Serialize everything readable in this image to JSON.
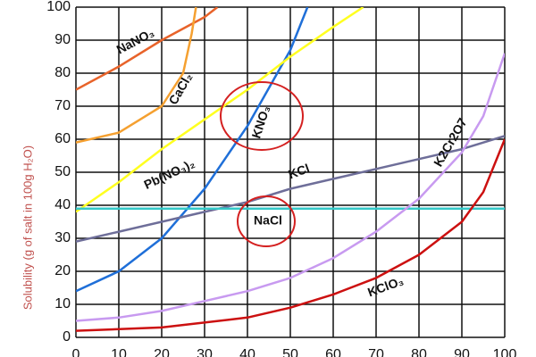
{
  "chart_data": {
    "type": "line",
    "ylabel": "Solubility (g of salt in 100g H₂O)",
    "xlim": [
      0,
      100
    ],
    "ylim": [
      0,
      100
    ],
    "xticks": [
      0,
      10,
      20,
      30,
      40,
      50,
      60,
      70,
      80,
      90,
      100
    ],
    "yticks": [
      0,
      10,
      20,
      30,
      40,
      50,
      60,
      70,
      80,
      90,
      100
    ],
    "grid": true,
    "series": [
      {
        "name": "NaNO₃",
        "color": "#e8632a",
        "x": [
          0,
          10,
          20,
          30,
          33
        ],
        "values": [
          75,
          82,
          90,
          97,
          100
        ]
      },
      {
        "name": "CaCl₂",
        "color": "#f5a030",
        "x": [
          0,
          10,
          20,
          25,
          27,
          28
        ],
        "values": [
          59,
          62,
          70,
          80,
          92,
          100
        ]
      },
      {
        "name": "KNO₃",
        "color": "#1f6fd8",
        "x": [
          0,
          10,
          20,
          30,
          40,
          50,
          54
        ],
        "values": [
          14,
          20,
          30,
          45,
          64,
          87,
          100
        ]
      },
      {
        "name": "Pb(NO₃)₂",
        "color": "#ffff20",
        "x": [
          0,
          10,
          20,
          30,
          40,
          50,
          60,
          67
        ],
        "values": [
          38,
          47,
          57,
          66,
          75,
          85,
          94,
          100
        ]
      },
      {
        "name": "KCl",
        "color": "#6e6e99",
        "x": [
          0,
          10,
          20,
          30,
          40,
          50,
          60,
          70,
          80,
          90,
          100
        ],
        "values": [
          29,
          32,
          35,
          38,
          41,
          45,
          48,
          51,
          54,
          57,
          61
        ]
      },
      {
        "name": "NaCl",
        "color": "#33c8c8",
        "x": [
          0,
          100
        ],
        "values": [
          39,
          39
        ]
      },
      {
        "name": "K2Cr2O7",
        "color": "#c89af0",
        "x": [
          0,
          10,
          20,
          30,
          40,
          50,
          60,
          70,
          80,
          90,
          95,
          100
        ],
        "values": [
          5,
          6,
          8,
          11,
          14,
          18,
          24,
          32,
          42,
          56,
          67,
          86
        ]
      },
      {
        "name": "KClO₃",
        "color": "#cc1010",
        "x": [
          0,
          20,
          40,
          50,
          60,
          70,
          80,
          90,
          95,
          100
        ],
        "values": [
          2,
          3,
          6,
          9,
          13,
          18,
          25,
          35,
          44,
          60
        ]
      }
    ]
  }
}
